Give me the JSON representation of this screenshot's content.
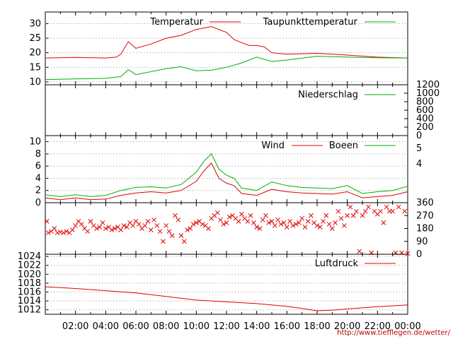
{
  "chart_data": [
    {
      "type": "line",
      "panel": "temperature",
      "yticks": [
        10,
        15,
        20,
        25,
        30
      ],
      "ylim": [
        9,
        34
      ],
      "grid": true,
      "legend_position": "top",
      "series": [
        {
          "name": "Temperatur",
          "color": "#e00000",
          "x": [
            0,
            2,
            4,
            4.7,
            5,
            5.5,
            6,
            7,
            8,
            9,
            10,
            11,
            12,
            12.5,
            13,
            13.5,
            14,
            14.5,
            15,
            16,
            18,
            20,
            22,
            24
          ],
          "y": [
            18.2,
            18.4,
            18.2,
            18.5,
            19.5,
            23.8,
            21.5,
            23,
            25,
            26,
            28,
            29,
            27,
            24.5,
            23.5,
            22.5,
            22.5,
            22,
            20,
            19.5,
            19.8,
            19.2,
            18.5,
            18.2
          ]
        },
        {
          "name": "Taupunkttemperatur",
          "color": "#00b000",
          "x": [
            0,
            2,
            4,
            5,
            5.5,
            6,
            8,
            9,
            10,
            11,
            12,
            13,
            14,
            15,
            16,
            18,
            20,
            22,
            24
          ],
          "y": [
            10.8,
            11.0,
            11.2,
            11.8,
            14.2,
            12.5,
            14.5,
            15.2,
            13.8,
            14.0,
            15.0,
            16.5,
            18.5,
            17.0,
            17.5,
            18.8,
            18.5,
            18.3,
            18.2
          ]
        }
      ]
    },
    {
      "type": "line",
      "panel": "precipitation",
      "yticks_right": [
        0,
        200,
        400,
        600,
        800,
        1000,
        1200
      ],
      "ylim": [
        0,
        1200
      ],
      "series": [
        {
          "name": "Niederschlag",
          "color": "#00b000",
          "x": [
            0,
            15,
            16,
            24
          ],
          "y": [
            0,
            0,
            0,
            0
          ]
        }
      ]
    },
    {
      "type": "line",
      "panel": "wind",
      "yticks": [
        0,
        2,
        4,
        6,
        8,
        10
      ],
      "yticks_right": [
        "5",
        "4"
      ],
      "ylim": [
        0,
        11
      ],
      "grid": true,
      "series": [
        {
          "name": "Wind",
          "color": "#e00000",
          "x": [
            0,
            1,
            2,
            3,
            4,
            5,
            6,
            7,
            8,
            9,
            10,
            10.5,
            11,
            11.5,
            12,
            12.5,
            13,
            14,
            15,
            16,
            17,
            18,
            19,
            20,
            21,
            22,
            23,
            24
          ],
          "y": [
            0.8,
            0.5,
            0.8,
            0.5,
            0.6,
            1.2,
            1.6,
            1.8,
            1.6,
            2.0,
            3.5,
            5.2,
            6.5,
            4.0,
            3.2,
            2.8,
            1.5,
            1.2,
            2.2,
            1.8,
            1.6,
            1.5,
            1.4,
            1.8,
            0.8,
            1.0,
            1.2,
            1.8
          ]
        },
        {
          "name": "Boeen",
          "color": "#00b000",
          "x": [
            0,
            1,
            2,
            3,
            4,
            5,
            6,
            7,
            8,
            9,
            10,
            10.5,
            11,
            11.5,
            12,
            12.5,
            13,
            14,
            15,
            16,
            17,
            18,
            19,
            20,
            21,
            22,
            23,
            24
          ],
          "y": [
            1.3,
            1.0,
            1.3,
            1.0,
            1.2,
            2.0,
            2.5,
            2.6,
            2.4,
            3.0,
            5.0,
            6.8,
            8.0,
            5.5,
            4.5,
            4.0,
            2.4,
            2.0,
            3.4,
            2.8,
            2.5,
            2.4,
            2.3,
            2.8,
            1.5,
            1.8,
            2.0,
            2.7
          ]
        }
      ]
    },
    {
      "type": "scatter",
      "panel": "wind-direction",
      "yticks_right": [
        0,
        90,
        180,
        270,
        360
      ],
      "ylim": [
        0,
        360
      ],
      "marker": "x",
      "color": "#e00000",
      "points": [
        [
          0.1,
          230
        ],
        [
          0.2,
          150
        ],
        [
          0.4,
          160
        ],
        [
          0.6,
          180
        ],
        [
          0.8,
          150
        ],
        [
          1.0,
          155
        ],
        [
          1.2,
          150
        ],
        [
          1.4,
          160
        ],
        [
          1.6,
          150
        ],
        [
          1.8,
          170
        ],
        [
          2.0,
          200
        ],
        [
          2.2,
          230
        ],
        [
          2.4,
          210
        ],
        [
          2.6,
          180
        ],
        [
          2.8,
          160
        ],
        [
          3.0,
          230
        ],
        [
          3.2,
          200
        ],
        [
          3.4,
          180
        ],
        [
          3.6,
          190
        ],
        [
          3.8,
          220
        ],
        [
          4.0,
          180
        ],
        [
          4.2,
          190
        ],
        [
          4.4,
          170
        ],
        [
          4.6,
          180
        ],
        [
          4.8,
          190
        ],
        [
          5.0,
          170
        ],
        [
          5.2,
          200
        ],
        [
          5.4,
          190
        ],
        [
          5.6,
          220
        ],
        [
          5.8,
          200
        ],
        [
          6.0,
          230
        ],
        [
          6.2,
          210
        ],
        [
          6.4,
          180
        ],
        [
          6.6,
          200
        ],
        [
          6.8,
          230
        ],
        [
          7.0,
          170
        ],
        [
          7.2,
          240
        ],
        [
          7.4,
          200
        ],
        [
          7.6,
          160
        ],
        [
          7.8,
          90
        ],
        [
          8.0,
          200
        ],
        [
          8.2,
          160
        ],
        [
          8.4,
          130
        ],
        [
          8.6,
          270
        ],
        [
          8.8,
          240
        ],
        [
          9.0,
          130
        ],
        [
          9.2,
          90
        ],
        [
          9.4,
          170
        ],
        [
          9.6,
          180
        ],
        [
          9.8,
          210
        ],
        [
          10.0,
          220
        ],
        [
          10.2,
          230
        ],
        [
          10.4,
          210
        ],
        [
          10.6,
          200
        ],
        [
          10.8,
          180
        ],
        [
          11.0,
          250
        ],
        [
          11.2,
          270
        ],
        [
          11.4,
          290
        ],
        [
          11.6,
          240
        ],
        [
          11.8,
          210
        ],
        [
          12.0,
          220
        ],
        [
          12.2,
          260
        ],
        [
          12.4,
          270
        ],
        [
          12.6,
          250
        ],
        [
          12.8,
          230
        ],
        [
          13.0,
          280
        ],
        [
          13.2,
          250
        ],
        [
          13.4,
          230
        ],
        [
          13.6,
          270
        ],
        [
          13.8,
          220
        ],
        [
          14.0,
          190
        ],
        [
          14.2,
          180
        ],
        [
          14.4,
          240
        ],
        [
          14.6,
          270
        ],
        [
          14.8,
          220
        ],
        [
          15.0,
          230
        ],
        [
          15.2,
          200
        ],
        [
          15.4,
          240
        ],
        [
          15.6,
          210
        ],
        [
          15.8,
          220
        ],
        [
          16.0,
          190
        ],
        [
          16.2,
          230
        ],
        [
          16.4,
          200
        ],
        [
          16.6,
          210
        ],
        [
          16.8,
          220
        ],
        [
          17.0,
          250
        ],
        [
          17.2,
          190
        ],
        [
          17.4,
          230
        ],
        [
          17.6,
          270
        ],
        [
          17.8,
          220
        ],
        [
          18.0,
          200
        ],
        [
          18.2,
          190
        ],
        [
          18.4,
          230
        ],
        [
          18.6,
          270
        ],
        [
          18.8,
          210
        ],
        [
          19.0,
          180
        ],
        [
          19.2,
          220
        ],
        [
          19.4,
          300
        ],
        [
          19.6,
          250
        ],
        [
          19.8,
          200
        ],
        [
          20.0,
          270
        ],
        [
          20.2,
          330
        ],
        [
          20.4,
          270
        ],
        [
          20.6,
          300
        ],
        [
          20.8,
          20
        ],
        [
          21.0,
          270
        ],
        [
          21.2,
          300
        ],
        [
          21.4,
          330
        ],
        [
          21.6,
          10
        ],
        [
          21.8,
          300
        ],
        [
          22.0,
          280
        ],
        [
          22.2,
          300
        ],
        [
          22.4,
          220
        ],
        [
          22.6,
          330
        ],
        [
          22.8,
          300
        ],
        [
          23.0,
          300
        ],
        [
          23.2,
          10
        ],
        [
          23.4,
          330
        ],
        [
          23.6,
          10
        ],
        [
          23.8,
          300
        ],
        [
          24.0,
          5
        ]
      ]
    },
    {
      "type": "line",
      "panel": "pressure",
      "yticks": [
        1012,
        1014,
        1016,
        1018,
        1020,
        1022,
        1024
      ],
      "ylim": [
        1011,
        1024.5
      ],
      "grid": true,
      "series": [
        {
          "name": "Luftdruck",
          "color": "#e00000",
          "x": [
            0,
            1,
            2,
            4,
            6,
            8,
            10,
            12,
            14,
            16,
            17,
            18,
            19,
            20,
            22,
            24
          ],
          "y": [
            1017.2,
            1017.0,
            1016.8,
            1016.3,
            1015.8,
            1015.0,
            1014.2,
            1013.8,
            1013.4,
            1012.8,
            1012.3,
            1011.8,
            1011.9,
            1012.2,
            1012.7,
            1013.1
          ]
        }
      ]
    }
  ],
  "x_axis": {
    "tick_labels": [
      "02:00",
      "04:00",
      "06:00",
      "08:00",
      "10:00",
      "12:00",
      "14:00",
      "16:00",
      "18:00",
      "20:00",
      "22:00",
      "00:00"
    ],
    "tick_hours": [
      2,
      4,
      6,
      8,
      10,
      12,
      14,
      16,
      18,
      20,
      22,
      24
    ]
  },
  "footer": {
    "url": "http://www.tiefflegen.de/wetter/"
  }
}
